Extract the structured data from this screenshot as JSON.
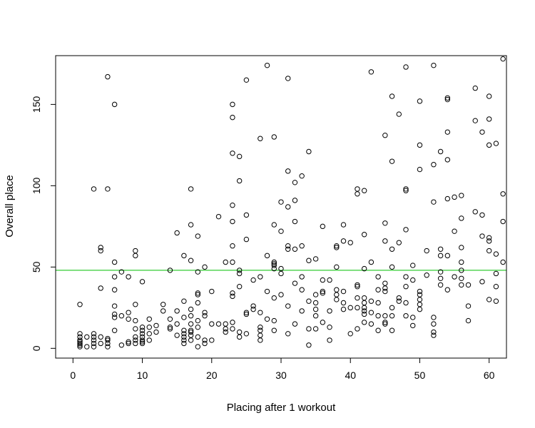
{
  "chart_data": {
    "type": "scatter",
    "xlabel": "Placing after 1 workout",
    "ylabel": "Overall place",
    "xlim": [
      -2.5,
      62.5
    ],
    "ylim": [
      -6,
      180
    ],
    "xticks": [
      0,
      10,
      20,
      30,
      40,
      50,
      60
    ],
    "yticks": [
      0,
      50,
      100,
      150
    ],
    "grid": false,
    "hline": {
      "y": 48,
      "color": "#33cc33"
    },
    "points": [
      [
        1,
        27
      ],
      [
        1,
        9
      ],
      [
        1,
        7
      ],
      [
        1,
        5
      ],
      [
        1,
        4
      ],
      [
        1,
        3
      ],
      [
        1,
        2
      ],
      [
        1,
        1
      ],
      [
        2,
        7
      ],
      [
        2,
        1
      ],
      [
        3,
        98
      ],
      [
        3,
        9
      ],
      [
        3,
        7
      ],
      [
        3,
        5
      ],
      [
        3,
        3
      ],
      [
        3,
        1
      ],
      [
        4,
        62
      ],
      [
        4,
        60
      ],
      [
        4,
        37
      ],
      [
        4,
        7
      ],
      [
        4,
        3
      ],
      [
        5,
        167
      ],
      [
        5,
        98
      ],
      [
        5,
        6
      ],
      [
        5,
        5
      ],
      [
        5,
        3
      ],
      [
        5,
        1
      ],
      [
        6,
        150
      ],
      [
        6,
        53
      ],
      [
        6,
        44
      ],
      [
        6,
        36
      ],
      [
        6,
        26
      ],
      [
        6,
        21
      ],
      [
        6,
        19
      ],
      [
        6,
        11
      ],
      [
        7,
        47
      ],
      [
        7,
        20
      ],
      [
        7,
        2
      ],
      [
        8,
        44
      ],
      [
        8,
        22
      ],
      [
        8,
        18
      ],
      [
        8,
        4
      ],
      [
        8,
        3
      ],
      [
        9,
        60
      ],
      [
        9,
        57
      ],
      [
        9,
        27
      ],
      [
        9,
        17
      ],
      [
        9,
        12
      ],
      [
        9,
        7
      ],
      [
        9,
        5
      ],
      [
        9,
        3
      ],
      [
        10,
        41
      ],
      [
        10,
        13
      ],
      [
        10,
        11
      ],
      [
        10,
        9
      ],
      [
        10,
        7
      ],
      [
        10,
        5
      ],
      [
        10,
        4
      ],
      [
        10,
        3
      ],
      [
        11,
        18
      ],
      [
        11,
        13
      ],
      [
        11,
        9
      ],
      [
        11,
        5
      ],
      [
        12,
        14
      ],
      [
        12,
        10
      ],
      [
        13,
        27
      ],
      [
        13,
        23
      ],
      [
        14,
        48
      ],
      [
        14,
        18
      ],
      [
        14,
        13
      ],
      [
        14,
        12
      ],
      [
        15,
        71
      ],
      [
        15,
        23
      ],
      [
        15,
        15
      ],
      [
        15,
        8
      ],
      [
        16,
        57
      ],
      [
        16,
        29
      ],
      [
        16,
        19
      ],
      [
        16,
        11
      ],
      [
        16,
        9
      ],
      [
        16,
        7
      ],
      [
        16,
        5
      ],
      [
        16,
        3
      ],
      [
        17,
        98
      ],
      [
        17,
        76
      ],
      [
        17,
        54
      ],
      [
        17,
        24
      ],
      [
        17,
        20
      ],
      [
        17,
        15
      ],
      [
        17,
        11
      ],
      [
        17,
        10
      ],
      [
        17,
        8
      ],
      [
        17,
        5
      ],
      [
        18,
        69
      ],
      [
        18,
        47
      ],
      [
        18,
        34
      ],
      [
        18,
        33
      ],
      [
        18,
        28
      ],
      [
        18,
        17
      ],
      [
        18,
        13
      ],
      [
        18,
        7
      ],
      [
        18,
        1
      ],
      [
        19,
        50
      ],
      [
        19,
        22
      ],
      [
        19,
        20
      ],
      [
        19,
        5
      ],
      [
        19,
        3
      ],
      [
        20,
        35
      ],
      [
        20,
        15
      ],
      [
        20,
        5
      ],
      [
        21,
        81
      ],
      [
        21,
        15
      ],
      [
        22,
        53
      ],
      [
        22,
        15
      ],
      [
        22,
        12
      ],
      [
        22,
        10
      ],
      [
        23,
        150
      ],
      [
        23,
        142
      ],
      [
        23,
        120
      ],
      [
        23,
        88
      ],
      [
        23,
        78
      ],
      [
        23,
        63
      ],
      [
        23,
        53
      ],
      [
        23,
        34
      ],
      [
        23,
        32
      ],
      [
        23,
        16
      ],
      [
        23,
        12
      ],
      [
        24,
        118
      ],
      [
        24,
        103
      ],
      [
        24,
        48
      ],
      [
        24,
        46
      ],
      [
        24,
        38
      ],
      [
        24,
        10
      ],
      [
        24,
        7
      ],
      [
        25,
        165
      ],
      [
        25,
        82
      ],
      [
        25,
        67
      ],
      [
        25,
        22
      ],
      [
        25,
        21
      ],
      [
        25,
        9
      ],
      [
        26,
        42
      ],
      [
        26,
        26
      ],
      [
        26,
        24
      ],
      [
        27,
        129
      ],
      [
        27,
        44
      ],
      [
        27,
        22
      ],
      [
        27,
        13
      ],
      [
        27,
        11
      ],
      [
        27,
        8
      ],
      [
        27,
        5
      ],
      [
        28,
        174
      ],
      [
        28,
        57
      ],
      [
        28,
        35
      ],
      [
        28,
        18
      ],
      [
        29,
        130
      ],
      [
        29,
        76
      ],
      [
        29,
        53
      ],
      [
        29,
        52
      ],
      [
        29,
        51
      ],
      [
        29,
        49
      ],
      [
        29,
        31
      ],
      [
        29,
        17
      ],
      [
        29,
        11
      ],
      [
        30,
        90
      ],
      [
        30,
        72
      ],
      [
        30,
        49
      ],
      [
        30,
        46
      ],
      [
        30,
        33
      ],
      [
        31,
        166
      ],
      [
        31,
        109
      ],
      [
        31,
        87
      ],
      [
        31,
        63
      ],
      [
        31,
        61
      ],
      [
        31,
        26
      ],
      [
        31,
        9
      ],
      [
        32,
        102
      ],
      [
        32,
        91
      ],
      [
        32,
        78
      ],
      [
        32,
        61
      ],
      [
        32,
        40
      ],
      [
        32,
        15
      ],
      [
        33,
        106
      ],
      [
        33,
        63
      ],
      [
        33,
        44
      ],
      [
        33,
        36
      ],
      [
        33,
        23
      ],
      [
        34,
        121
      ],
      [
        34,
        54
      ],
      [
        34,
        29
      ],
      [
        34,
        12
      ],
      [
        34,
        2
      ],
      [
        35,
        55
      ],
      [
        35,
        33
      ],
      [
        35,
        28
      ],
      [
        35,
        24
      ],
      [
        35,
        20
      ],
      [
        35,
        12
      ],
      [
        36,
        75
      ],
      [
        36,
        42
      ],
      [
        36,
        35
      ],
      [
        36,
        34
      ],
      [
        36,
        16
      ],
      [
        37,
        42
      ],
      [
        37,
        23
      ],
      [
        37,
        13
      ],
      [
        37,
        5
      ],
      [
        38,
        63
      ],
      [
        38,
        62
      ],
      [
        38,
        50
      ],
      [
        38,
        36
      ],
      [
        38,
        33
      ],
      [
        38,
        30
      ],
      [
        39,
        76
      ],
      [
        39,
        66
      ],
      [
        39,
        35
      ],
      [
        39,
        28
      ],
      [
        39,
        24
      ],
      [
        40,
        65
      ],
      [
        40,
        25
      ],
      [
        40,
        9
      ],
      [
        41,
        98
      ],
      [
        41,
        95
      ],
      [
        41,
        39
      ],
      [
        41,
        38
      ],
      [
        41,
        31
      ],
      [
        41,
        25
      ],
      [
        41,
        12
      ],
      [
        42,
        97
      ],
      [
        42,
        70
      ],
      [
        42,
        49
      ],
      [
        42,
        31
      ],
      [
        42,
        28
      ],
      [
        42,
        25
      ],
      [
        42,
        23
      ],
      [
        42,
        21
      ],
      [
        42,
        16
      ],
      [
        43,
        170
      ],
      [
        43,
        53
      ],
      [
        43,
        29
      ],
      [
        43,
        22
      ],
      [
        43,
        15
      ],
      [
        44,
        44
      ],
      [
        44,
        36
      ],
      [
        44,
        28
      ],
      [
        44,
        20
      ],
      [
        44,
        11
      ],
      [
        45,
        131
      ],
      [
        45,
        77
      ],
      [
        45,
        66
      ],
      [
        45,
        40
      ],
      [
        45,
        37
      ],
      [
        45,
        35
      ],
      [
        45,
        20
      ],
      [
        45,
        16
      ],
      [
        45,
        15
      ],
      [
        46,
        155
      ],
      [
        46,
        115
      ],
      [
        46,
        61
      ],
      [
        46,
        50
      ],
      [
        46,
        25
      ],
      [
        46,
        20
      ],
      [
        46,
        11
      ],
      [
        47,
        144
      ],
      [
        47,
        65
      ],
      [
        47,
        31
      ],
      [
        47,
        29
      ],
      [
        48,
        173
      ],
      [
        48,
        98
      ],
      [
        48,
        97
      ],
      [
        48,
        73
      ],
      [
        48,
        44
      ],
      [
        48,
        38
      ],
      [
        48,
        28
      ],
      [
        48,
        20
      ],
      [
        49,
        51
      ],
      [
        49,
        42
      ],
      [
        49,
        19
      ],
      [
        49,
        14
      ],
      [
        50,
        152
      ],
      [
        50,
        125
      ],
      [
        50,
        110
      ],
      [
        50,
        35
      ],
      [
        50,
        33
      ],
      [
        50,
        30
      ],
      [
        50,
        27
      ],
      [
        50,
        24
      ],
      [
        51,
        60
      ],
      [
        51,
        45
      ],
      [
        52,
        174
      ],
      [
        52,
        113
      ],
      [
        52,
        90
      ],
      [
        52,
        19
      ],
      [
        52,
        15
      ],
      [
        52,
        10
      ],
      [
        52,
        8
      ],
      [
        53,
        121
      ],
      [
        53,
        61
      ],
      [
        53,
        57
      ],
      [
        53,
        47
      ],
      [
        53,
        43
      ],
      [
        53,
        39
      ],
      [
        54,
        154
      ],
      [
        54,
        153
      ],
      [
        54,
        133
      ],
      [
        54,
        116
      ],
      [
        54,
        92
      ],
      [
        54,
        57
      ],
      [
        54,
        36
      ],
      [
        55,
        93
      ],
      [
        55,
        72
      ],
      [
        55,
        44
      ],
      [
        56,
        94
      ],
      [
        56,
        80
      ],
      [
        56,
        62
      ],
      [
        56,
        53
      ],
      [
        56,
        48
      ],
      [
        56,
        43
      ],
      [
        56,
        39
      ],
      [
        57,
        39
      ],
      [
        57,
        26
      ],
      [
        57,
        17
      ],
      [
        58,
        160
      ],
      [
        58,
        140
      ],
      [
        58,
        84
      ],
      [
        59,
        133
      ],
      [
        59,
        82
      ],
      [
        59,
        69
      ],
      [
        59,
        41
      ],
      [
        60,
        155
      ],
      [
        60,
        141
      ],
      [
        60,
        125
      ],
      [
        60,
        68
      ],
      [
        60,
        66
      ],
      [
        60,
        60
      ],
      [
        60,
        30
      ],
      [
        61,
        126
      ],
      [
        61,
        58
      ],
      [
        61,
        46
      ],
      [
        61,
        38
      ],
      [
        61,
        29
      ],
      [
        62,
        178
      ],
      [
        62,
        95
      ],
      [
        62,
        78
      ],
      [
        62,
        53
      ]
    ]
  }
}
